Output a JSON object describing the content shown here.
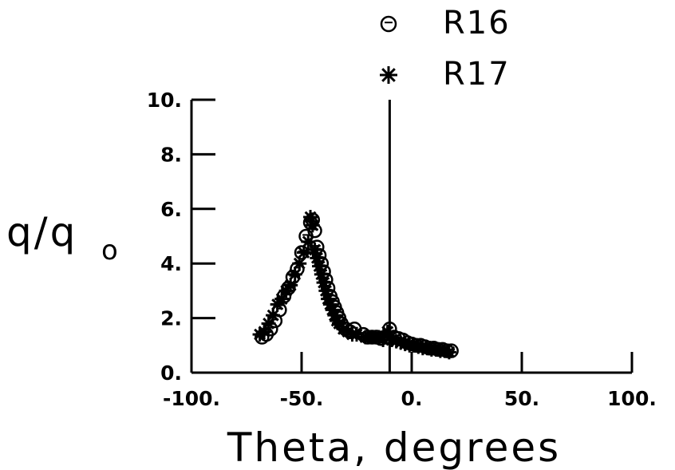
{
  "chart_data": {
    "type": "scatter",
    "title": "",
    "xlabel": "Theta, degrees",
    "ylabel_main": "q/q",
    "ylabel_subscript": "o",
    "xlim": [
      -100,
      100
    ],
    "ylim": [
      0,
      10
    ],
    "grid": false,
    "legend_placement": "top-center",
    "reference_line_x": -10,
    "x_ticks": [
      {
        "value": -100,
        "label": "-100."
      },
      {
        "value": -50,
        "label": "-50."
      },
      {
        "value": 0,
        "label": "0."
      },
      {
        "value": 50,
        "label": "50."
      },
      {
        "value": 100,
        "label": "100."
      }
    ],
    "y_ticks": [
      {
        "value": 0,
        "label": "0."
      },
      {
        "value": 2,
        "label": "2."
      },
      {
        "value": 4,
        "label": "4."
      },
      {
        "value": 6,
        "label": "6."
      },
      {
        "value": 8,
        "label": "8."
      },
      {
        "value": 10,
        "label": "10."
      }
    ],
    "series": [
      {
        "name": "R16",
        "marker": "circle",
        "x": [
          -68,
          -66,
          -64,
          -62,
          -60,
          -58,
          -56,
          -54,
          -52,
          -50,
          -48,
          -46,
          -45,
          -44,
          -43,
          -42,
          -41,
          -40,
          -39,
          -38,
          -37,
          -36,
          -35,
          -34,
          -33,
          -32,
          -30,
          -28,
          -26,
          -22,
          -20,
          -18,
          -16,
          -14,
          -12,
          -10,
          -8,
          -6,
          -4,
          -2,
          0,
          2,
          4,
          6,
          8,
          10,
          12,
          14,
          16,
          18
        ],
        "y": [
          1.3,
          1.4,
          1.6,
          1.9,
          2.3,
          2.8,
          3.1,
          3.5,
          3.8,
          4.4,
          5.0,
          5.5,
          5.6,
          5.2,
          4.6,
          4.3,
          4.0,
          3.7,
          3.4,
          3.1,
          2.8,
          2.6,
          2.4,
          2.2,
          2.0,
          1.8,
          1.6,
          1.5,
          1.6,
          1.4,
          1.3,
          1.3,
          1.3,
          1.25,
          1.3,
          1.6,
          1.3,
          1.25,
          1.2,
          1.1,
          1.05,
          1.0,
          1.0,
          0.95,
          0.9,
          0.9,
          0.85,
          0.85,
          0.8,
          0.8
        ]
      },
      {
        "name": "R17",
        "marker": "asterisk",
        "x": [
          -69,
          -67,
          -65,
          -63,
          -61,
          -59,
          -57,
          -55,
          -53,
          -51,
          -49,
          -47,
          -46,
          -45,
          -44,
          -43,
          -42,
          -41,
          -40,
          -39,
          -38,
          -37,
          -36,
          -35,
          -34,
          -33,
          -31,
          -29,
          -27,
          -25,
          -21,
          -19,
          -17,
          -15,
          -13,
          -11,
          -9,
          -7,
          -5,
          -3,
          -1,
          1,
          3,
          5,
          7,
          9,
          11,
          13,
          15,
          17
        ],
        "y": [
          1.4,
          1.5,
          1.8,
          2.1,
          2.5,
          2.7,
          3.0,
          3.2,
          3.6,
          4.0,
          4.4,
          4.8,
          5.7,
          5.4,
          4.5,
          4.2,
          3.9,
          3.6,
          3.3,
          3.0,
          2.7,
          2.5,
          2.3,
          2.1,
          1.9,
          1.8,
          1.6,
          1.5,
          1.4,
          1.4,
          1.3,
          1.3,
          1.3,
          1.3,
          1.2,
          1.5,
          1.2,
          1.15,
          1.1,
          1.05,
          1.0,
          1.0,
          0.95,
          0.9,
          0.9,
          0.85,
          0.85,
          0.8,
          0.8,
          0.75
        ]
      }
    ]
  }
}
